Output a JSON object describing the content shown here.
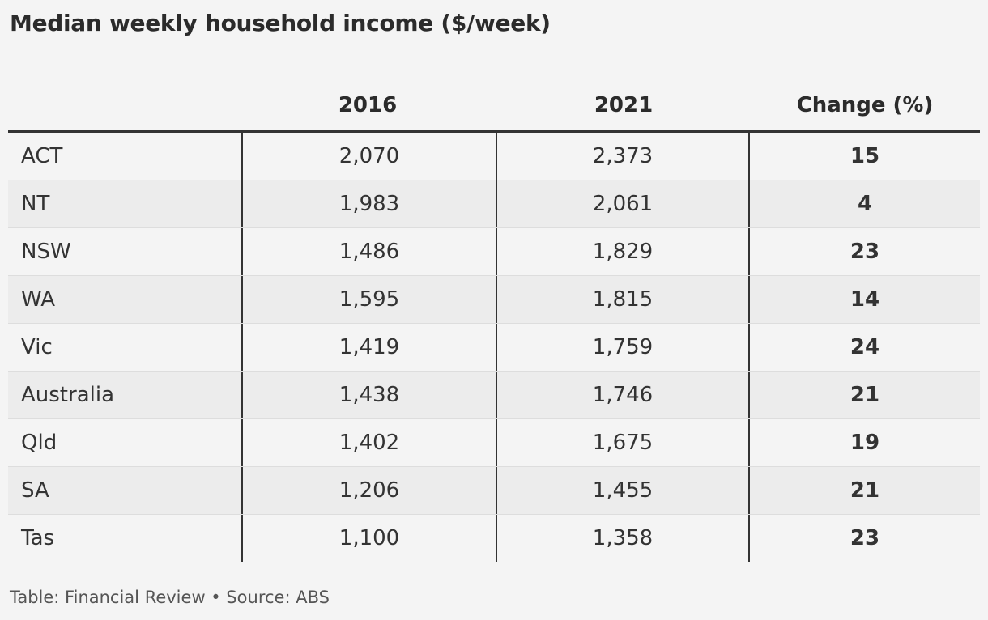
{
  "chart_data": {
    "type": "table",
    "title": "Median weekly household income ($/week)",
    "columns": [
      "",
      "2016",
      "2021",
      "Change (%)"
    ],
    "rows": [
      {
        "label": "ACT",
        "y2016": "2,070",
        "y2021": "2,373",
        "change": "15"
      },
      {
        "label": "NT",
        "y2016": "1,983",
        "y2021": "2,061",
        "change": "4"
      },
      {
        "label": "NSW",
        "y2016": "1,486",
        "y2021": "1,829",
        "change": "23"
      },
      {
        "label": "WA",
        "y2016": "1,595",
        "y2021": "1,815",
        "change": "14"
      },
      {
        "label": "Vic",
        "y2016": "1,419",
        "y2021": "1,759",
        "change": "24"
      },
      {
        "label": "Australia",
        "y2016": "1,438",
        "y2021": "1,746",
        "change": "21"
      },
      {
        "label": "Qld",
        "y2016": "1,402",
        "y2021": "1,675",
        "change": "19"
      },
      {
        "label": "SA",
        "y2016": "1,206",
        "y2021": "1,455",
        "change": "21"
      },
      {
        "label": "Tas",
        "y2016": "1,100",
        "y2021": "1,358",
        "change": "23"
      }
    ],
    "source": "Table: Financial Review • Source: ABS"
  },
  "colors": {
    "background": "#f4f4f4",
    "alt_row": "#ececec",
    "text": "#333333",
    "rule": "#333333"
  }
}
